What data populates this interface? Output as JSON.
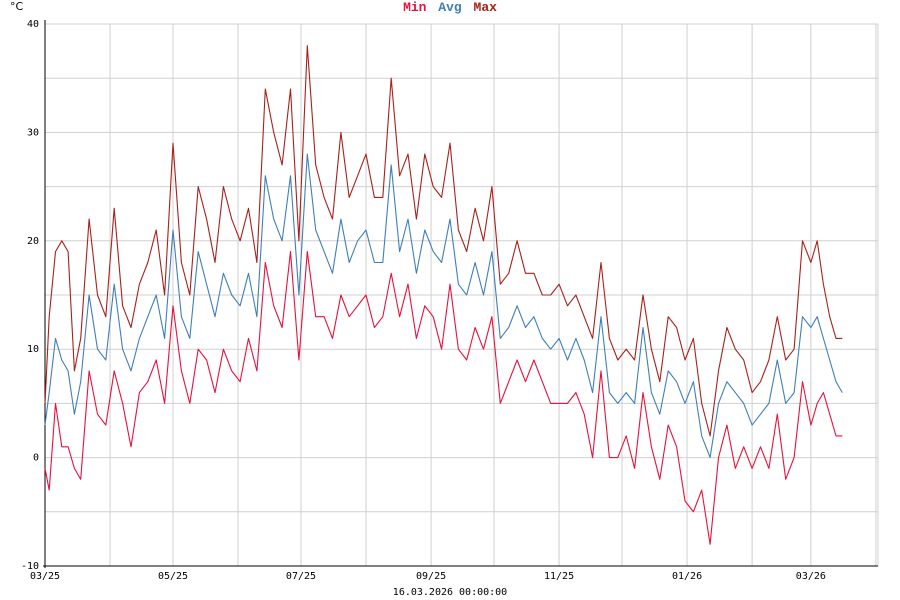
{
  "legend": {
    "min_label": "Min",
    "avg_label": "Avg",
    "max_label": "Max"
  },
  "unit": "°C",
  "timestamp": "16.03.2026 00:00:00",
  "colors": {
    "min": "#e8103c",
    "avg": "#3f7fb8",
    "max": "#a8201a",
    "grid": "#d0d0d0",
    "axis": "#000000"
  },
  "chart_data": {
    "type": "line",
    "title": "",
    "xlabel": "",
    "ylabel": "°C",
    "ylim": [
      -10,
      40
    ],
    "yticks": [
      -10,
      0,
      10,
      20,
      30,
      40
    ],
    "xlim": [
      "2025-03-01",
      "2026-04-02"
    ],
    "xticks": [
      {
        "date": "2025-03-01",
        "label": "03/25"
      },
      {
        "date": "2025-05-01",
        "label": "05/25"
      },
      {
        "date": "2025-07-01",
        "label": "07/25"
      },
      {
        "date": "2025-09-01",
        "label": "09/25"
      },
      {
        "date": "2025-11-01",
        "label": "11/25"
      },
      {
        "date": "2026-01-01",
        "label": "01/26"
      },
      {
        "date": "2026-03-01",
        "label": "03/26"
      }
    ],
    "grid": true,
    "legend_position": "top-center",
    "x": [
      "2025-03-01",
      "2025-03-03",
      "2025-03-06",
      "2025-03-09",
      "2025-03-12",
      "2025-03-15",
      "2025-03-18",
      "2025-03-22",
      "2025-03-26",
      "2025-03-30",
      "2025-04-03",
      "2025-04-07",
      "2025-04-11",
      "2025-04-15",
      "2025-04-19",
      "2025-04-23",
      "2025-04-27",
      "2025-05-01",
      "2025-05-05",
      "2025-05-09",
      "2025-05-13",
      "2025-05-17",
      "2025-05-21",
      "2025-05-25",
      "2025-05-29",
      "2025-06-02",
      "2025-06-06",
      "2025-06-10",
      "2025-06-14",
      "2025-06-18",
      "2025-06-22",
      "2025-06-26",
      "2025-06-30",
      "2025-07-04",
      "2025-07-08",
      "2025-07-12",
      "2025-07-16",
      "2025-07-20",
      "2025-07-24",
      "2025-07-28",
      "2025-08-01",
      "2025-08-05",
      "2025-08-09",
      "2025-08-13",
      "2025-08-17",
      "2025-08-21",
      "2025-08-25",
      "2025-08-29",
      "2025-09-02",
      "2025-09-06",
      "2025-09-10",
      "2025-09-14",
      "2025-09-18",
      "2025-09-22",
      "2025-09-26",
      "2025-09-30",
      "2025-10-04",
      "2025-10-08",
      "2025-10-12",
      "2025-10-16",
      "2025-10-20",
      "2025-10-24",
      "2025-10-28",
      "2025-11-01",
      "2025-11-05",
      "2025-11-09",
      "2025-11-13",
      "2025-11-17",
      "2025-11-21",
      "2025-11-25",
      "2025-11-29",
      "2025-12-03",
      "2025-12-07",
      "2025-12-11",
      "2025-12-15",
      "2025-12-19",
      "2025-12-23",
      "2025-12-27",
      "2025-12-31",
      "2026-01-04",
      "2026-01-08",
      "2026-01-12",
      "2026-01-16",
      "2026-01-20",
      "2026-01-24",
      "2026-01-28",
      "2026-02-01",
      "2026-02-05",
      "2026-02-09",
      "2026-02-13",
      "2026-02-17",
      "2026-02-21",
      "2026-02-25",
      "2026-03-01",
      "2026-03-04",
      "2026-03-07",
      "2026-03-10",
      "2026-03-13",
      "2026-03-16"
    ],
    "series": [
      {
        "name": "Max",
        "color": "#a8201a",
        "values": [
          5,
          13,
          19,
          20,
          19,
          8,
          11,
          22,
          15,
          13,
          23,
          14,
          12,
          16,
          18,
          21,
          15,
          29,
          18,
          15,
          25,
          22,
          18,
          25,
          22,
          20,
          23,
          18,
          34,
          30,
          27,
          34,
          20,
          38,
          27,
          24,
          22,
          30,
          24,
          26,
          28,
          24,
          24,
          35,
          26,
          28,
          22,
          28,
          25,
          24,
          29,
          21,
          19,
          23,
          20,
          25,
          16,
          17,
          20,
          17,
          17,
          15,
          15,
          16,
          14,
          15,
          13,
          11,
          18,
          11,
          9,
          10,
          9,
          15,
          10,
          7,
          13,
          12,
          9,
          11,
          5,
          2,
          8,
          12,
          10,
          9,
          6,
          7,
          9,
          13,
          9,
          10,
          20,
          18,
          20,
          16,
          13,
          11,
          11
        ]
      },
      {
        "name": "Avg",
        "color": "#3f7fb8",
        "values": [
          3,
          6,
          11,
          9,
          8,
          4,
          7,
          15,
          10,
          9,
          16,
          10,
          8,
          11,
          13,
          15,
          11,
          21,
          13,
          11,
          19,
          16,
          13,
          17,
          15,
          14,
          17,
          13,
          26,
          22,
          20,
          26,
          15,
          28,
          21,
          19,
          17,
          22,
          18,
          20,
          21,
          18,
          18,
          27,
          19,
          22,
          17,
          21,
          19,
          18,
          22,
          16,
          15,
          18,
          15,
          19,
          11,
          12,
          14,
          12,
          13,
          11,
          10,
          11,
          9,
          11,
          9,
          6,
          13,
          6,
          5,
          6,
          5,
          12,
          6,
          4,
          8,
          7,
          5,
          7,
          2,
          0,
          5,
          7,
          6,
          5,
          3,
          4,
          5,
          9,
          5,
          6,
          13,
          12,
          13,
          11,
          9,
          7,
          6
        ]
      },
      {
        "name": "Min",
        "color": "#e8103c",
        "values": [
          -1,
          -3,
          5,
          1,
          1,
          -1,
          -2,
          8,
          4,
          3,
          8,
          5,
          1,
          6,
          7,
          9,
          5,
          14,
          8,
          5,
          10,
          9,
          6,
          10,
          8,
          7,
          11,
          8,
          18,
          14,
          12,
          19,
          9,
          19,
          13,
          13,
          11,
          15,
          13,
          14,
          15,
          12,
          13,
          17,
          13,
          16,
          11,
          14,
          13,
          10,
          16,
          10,
          9,
          12,
          10,
          13,
          5,
          7,
          9,
          7,
          9,
          7,
          5,
          5,
          5,
          6,
          4,
          0,
          8,
          0,
          0,
          2,
          -1,
          6,
          1,
          -2,
          3,
          1,
          -4,
          -5,
          -3,
          -8,
          0,
          3,
          -1,
          1,
          -1,
          1,
          -1,
          4,
          -2,
          0,
          7,
          3,
          5,
          6,
          4,
          2,
          2
        ]
      }
    ]
  }
}
